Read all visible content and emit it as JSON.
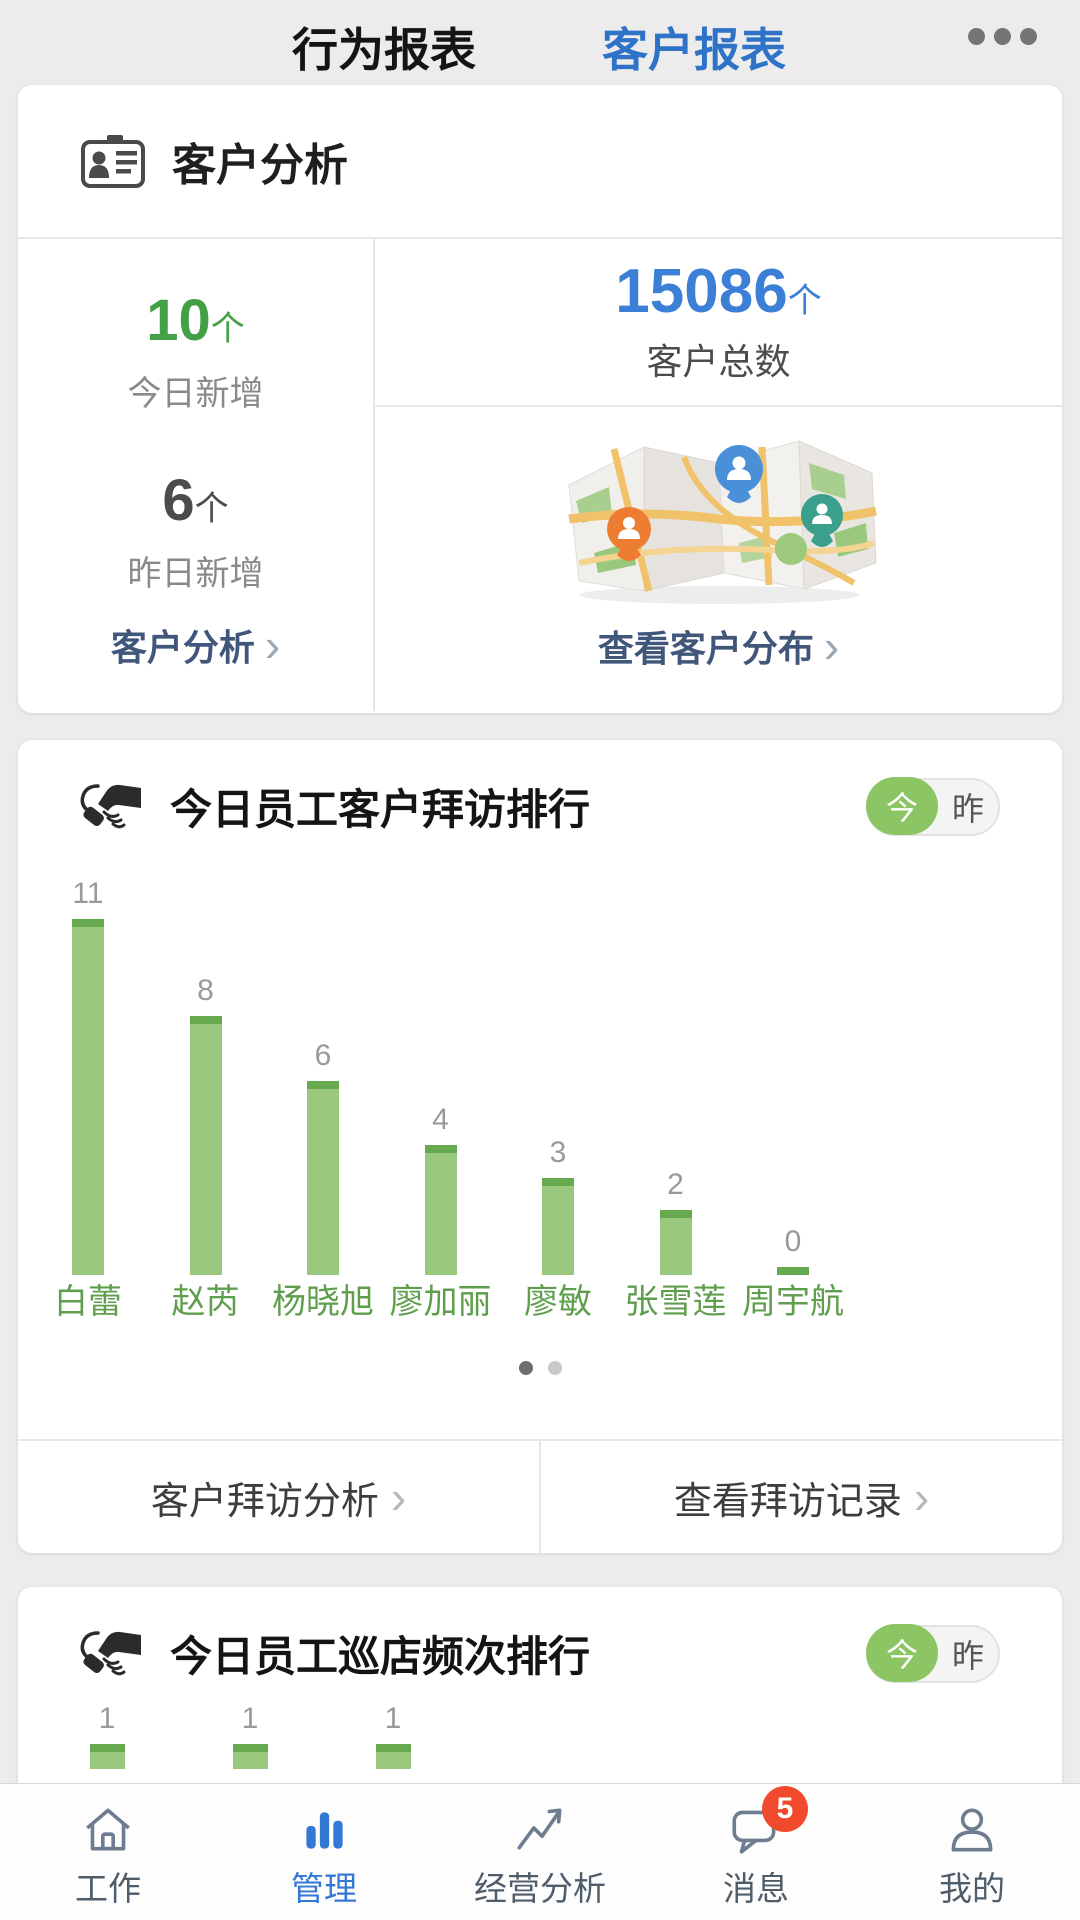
{
  "header": {
    "tabs": [
      {
        "label": "行为报表",
        "active": false
      },
      {
        "label": "客户报表",
        "active": true
      }
    ],
    "active_color": "#2e73c8"
  },
  "customer_card": {
    "title": "客户分析",
    "today_new": {
      "value": "10",
      "unit": "个",
      "label": "今日新增",
      "color": "#43a047"
    },
    "yesterday_new": {
      "value": "6",
      "unit": "个",
      "label": "昨日新增"
    },
    "total": {
      "value": "15086",
      "unit": "个",
      "label": "客户总数",
      "color": "#3b7fd6"
    },
    "analysis_link": "客户分析",
    "distribution_link": "查看客户分布",
    "chevron": "›"
  },
  "visit_card": {
    "title": "今日员工客户拜访排行",
    "toggle": {
      "today": "今",
      "yesterday": "昨",
      "on_color": "#8cc563"
    },
    "pagination": {
      "pages": 2,
      "active": 0
    },
    "analysis_link": "客户拜访分析",
    "records_link": "查看拜访记录",
    "chevron": "›",
    "chart_data": {
      "type": "bar",
      "categories": [
        "白蕾",
        "赵芮",
        "杨晓旭",
        "廖加丽",
        "廖敏",
        "张雪莲",
        "周宇航"
      ],
      "values": [
        11,
        8,
        6,
        4,
        3,
        2,
        0
      ],
      "bar_color": "#9bc87f",
      "bar_cap_color": "#67a94f",
      "value_label_color": "#9a9a9a",
      "category_label_color": "#5f9e4c"
    }
  },
  "patrol_card": {
    "title": "今日员工巡店频次排行",
    "toggle": {
      "today": "今",
      "yesterday": "昨",
      "on_color": "#8cc563"
    },
    "chart_data": {
      "type": "bar",
      "categories": [
        "",
        "",
        ""
      ],
      "values": [
        1,
        1,
        1
      ],
      "bar_color": "#9bc87f",
      "bar_cap_color": "#67a94f"
    }
  },
  "bottom_nav": {
    "items": [
      {
        "label": "工作",
        "icon": "home-icon",
        "active": false
      },
      {
        "label": "管理",
        "icon": "bar-chart-icon",
        "active": true
      },
      {
        "label": "经营分析",
        "icon": "trend-icon",
        "active": false
      },
      {
        "label": "消息",
        "icon": "chat-icon",
        "active": false,
        "badge": "5"
      },
      {
        "label": "我的",
        "icon": "user-icon",
        "active": false
      }
    ],
    "active_color": "#3478d6",
    "badge_color": "#f1492c"
  }
}
